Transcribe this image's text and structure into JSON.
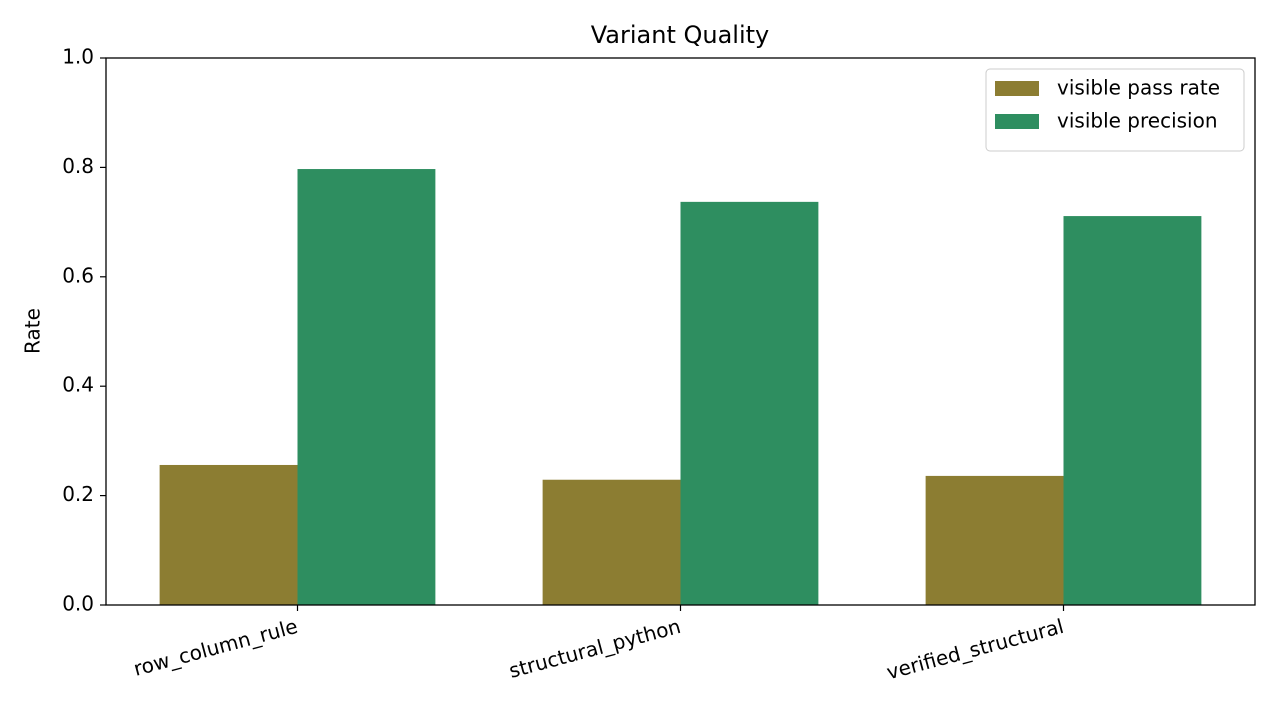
{
  "chart_data": {
    "type": "bar",
    "title": "Variant Quality",
    "y_label": "Rate",
    "categories": [
      "row_column_rule",
      "structural_python",
      "verified_structural"
    ],
    "series": [
      {
        "name": "visible pass rate",
        "color": "#8c7d32",
        "values": [
          0.256,
          0.229,
          0.236
        ]
      },
      {
        "name": "visible precision",
        "color": "#2e8e60",
        "values": [
          0.797,
          0.737,
          0.711
        ]
      }
    ],
    "ylim": [
      0,
      1
    ],
    "yticks": [
      {
        "value": 0,
        "label": "0.0"
      },
      0.2,
      0.4,
      0.6,
      0.8,
      {
        "value": 1,
        "label": "1.0"
      }
    ],
    "legend": "upper right"
  }
}
